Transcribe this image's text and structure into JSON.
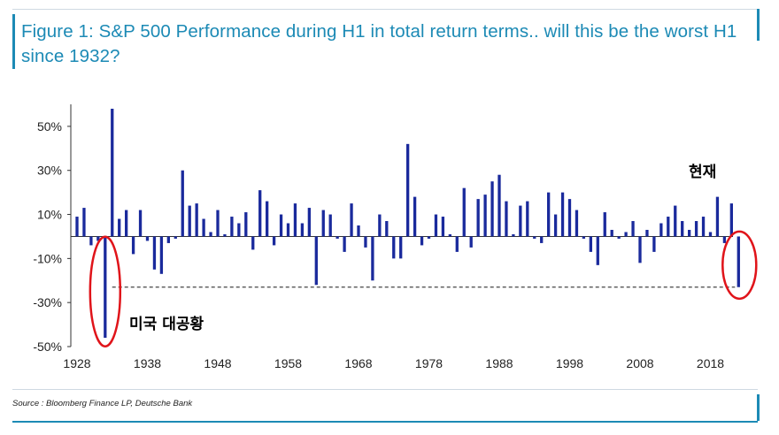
{
  "title": "Figure 1: S&P 500 Performance during H1 in total return terms.. will this be the worst H1 since 1932?",
  "source": "Source : Bloomberg Finance LP, Deutsche Bank",
  "colors": {
    "bar": "#1a2a9c",
    "title": "#1c8ab5",
    "highlight": "#e0141a",
    "dashed": "#444444"
  },
  "chart_data": {
    "type": "bar",
    "title": "Figure 1: S&P 500 Performance during H1 in total return terms.. will this be the worst H1 since 1932?",
    "xlabel": "",
    "ylabel": "",
    "ylim": [
      -50,
      60
    ],
    "xlim": [
      1928,
      2022
    ],
    "x_ticks": [
      "1928",
      "1938",
      "1948",
      "1958",
      "1968",
      "1978",
      "1988",
      "1998",
      "2008",
      "2018"
    ],
    "y_ticks": [
      "50%",
      "30%",
      "10%",
      "-10%",
      "-30%",
      "-50%"
    ],
    "y_tick_values": [
      50,
      30,
      10,
      -10,
      -30,
      -50
    ],
    "categories": [
      1928,
      1929,
      1930,
      1931,
      1932,
      1933,
      1934,
      1935,
      1936,
      1937,
      1938,
      1939,
      1940,
      1941,
      1942,
      1943,
      1944,
      1945,
      1946,
      1947,
      1948,
      1949,
      1950,
      1951,
      1952,
      1953,
      1954,
      1955,
      1956,
      1957,
      1958,
      1959,
      1960,
      1961,
      1962,
      1963,
      1964,
      1965,
      1966,
      1967,
      1968,
      1969,
      1970,
      1971,
      1972,
      1973,
      1974,
      1975,
      1976,
      1977,
      1978,
      1979,
      1980,
      1981,
      1982,
      1983,
      1984,
      1985,
      1986,
      1987,
      1988,
      1989,
      1990,
      1991,
      1992,
      1993,
      1994,
      1995,
      1996,
      1997,
      1998,
      1999,
      2000,
      2001,
      2002,
      2003,
      2004,
      2005,
      2006,
      2007,
      2008,
      2009,
      2010,
      2011,
      2012,
      2013,
      2014,
      2015,
      2016,
      2017,
      2018,
      2019,
      2020,
      2021,
      2022
    ],
    "values": [
      9,
      13,
      -4,
      -2,
      -46,
      58,
      8,
      12,
      -8,
      12,
      -2,
      -15,
      -17,
      -3,
      -1,
      30,
      14,
      15,
      8,
      2,
      12,
      1,
      9,
      6,
      11,
      -6,
      21,
      16,
      -4,
      10,
      6,
      15,
      6,
      13,
      -22,
      12,
      10,
      -1,
      -7,
      15,
      5,
      -5,
      -20,
      10,
      7,
      -10,
      -10,
      42,
      18,
      -4,
      -1,
      10,
      9,
      1,
      -7,
      22,
      -5,
      17,
      19,
      25,
      28,
      16,
      1,
      14,
      16,
      -1,
      -3,
      20,
      10,
      20,
      17,
      12,
      -1,
      -7,
      -13,
      11,
      3,
      -1,
      2,
      7,
      -12,
      3,
      -7,
      6,
      9,
      14,
      7,
      3,
      7,
      9,
      2,
      18,
      -3,
      15,
      -23
    ]
  },
  "annotations": {
    "depression_label": "미국 대공황",
    "current_label": "현재"
  }
}
